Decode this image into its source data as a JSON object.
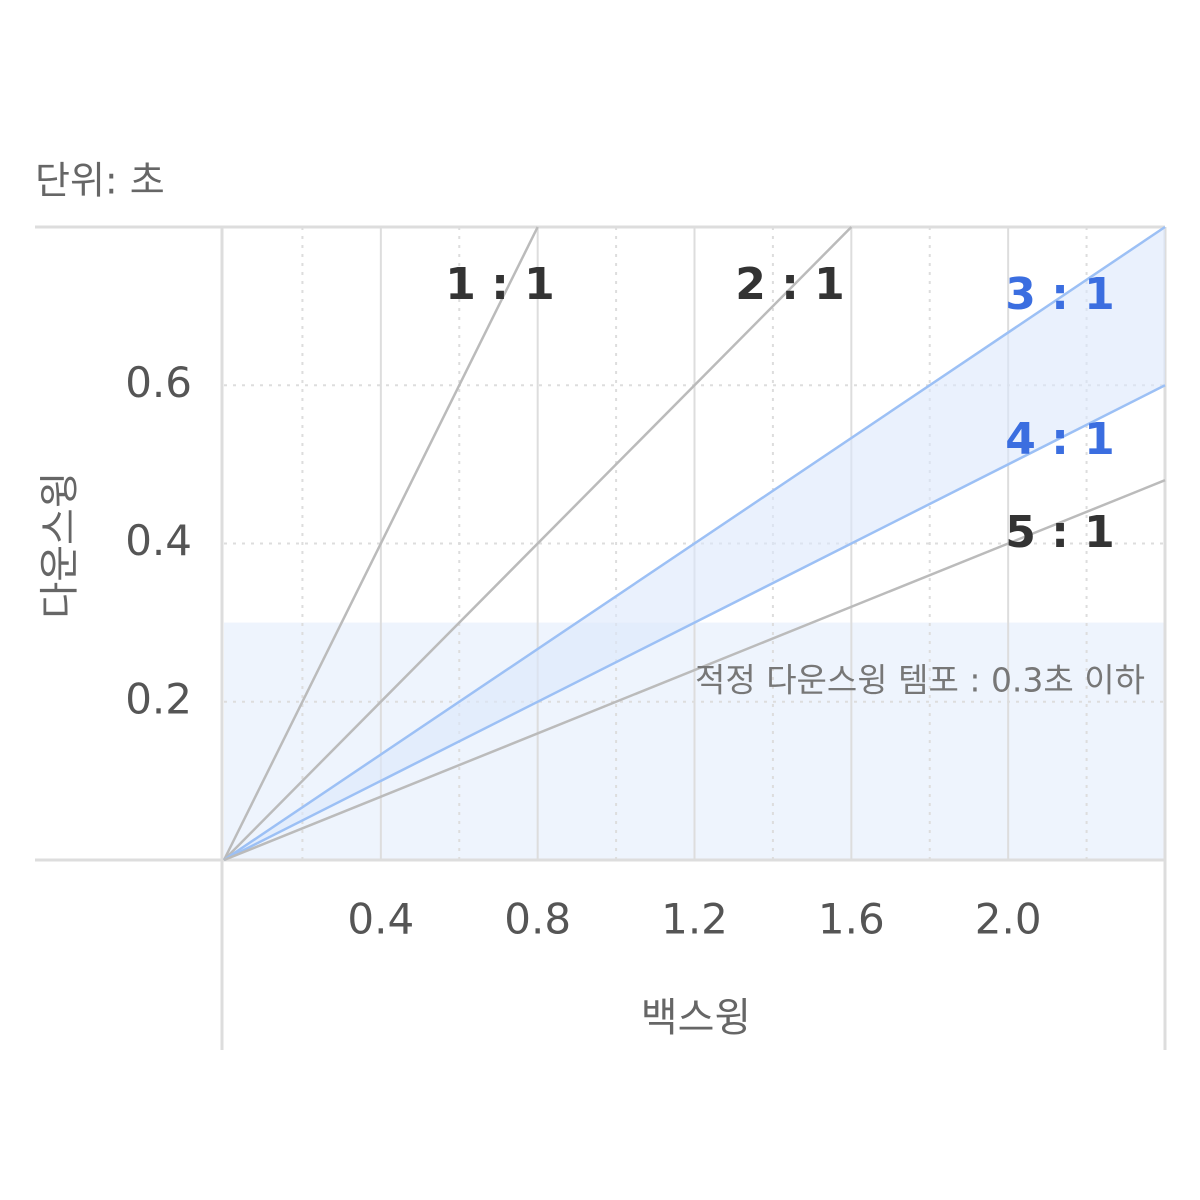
{
  "chart_data": {
    "type": "line",
    "unit_label": "단위: 초",
    "x_label": "백스윙",
    "y_label": "다운스윙",
    "xlim": [
      0,
      2.4
    ],
    "ylim": [
      0,
      0.8
    ],
    "xticks": [
      0.4,
      0.8,
      1.2,
      1.6,
      {
        "value": 2.0,
        "label": "2.0"
      }
    ],
    "x_minor_ticks": [
      0.2,
      0.6,
      1.0,
      1.4,
      1.8,
      2.2
    ],
    "yticks": [
      0.2,
      0.4,
      0.6
    ],
    "grid": true,
    "highlight_ylim": [
      0,
      0.3
    ],
    "highlight_color": "#eef4fd",
    "annotation": "적정 다운스윙 템포 : 0.3초 이하",
    "series": [
      {
        "name": "1 : 1",
        "color": "#bbbbbb",
        "label_color": "#333333",
        "x": [
          0,
          0.8
        ],
        "values": [
          0,
          0.8
        ]
      },
      {
        "name": "2 : 1",
        "color": "#bbbbbb",
        "label_color": "#333333",
        "x": [
          0,
          1.6
        ],
        "values": [
          0,
          0.8
        ]
      },
      {
        "name": "3 : 1",
        "color": "#9cc0f5",
        "label_color": "#3b6ee0",
        "x": [
          0,
          2.4
        ],
        "values": [
          0,
          0.8
        ]
      },
      {
        "name": "4 : 1",
        "color": "#9cc0f5",
        "label_color": "#3b6ee0",
        "x": [
          0,
          2.4
        ],
        "values": [
          0,
          0.6
        ]
      },
      {
        "name": "5 : 1",
        "color": "#bbbbbb",
        "label_color": "#333333",
        "x": [
          0,
          2.4
        ],
        "values": [
          0,
          0.48
        ]
      }
    ]
  }
}
